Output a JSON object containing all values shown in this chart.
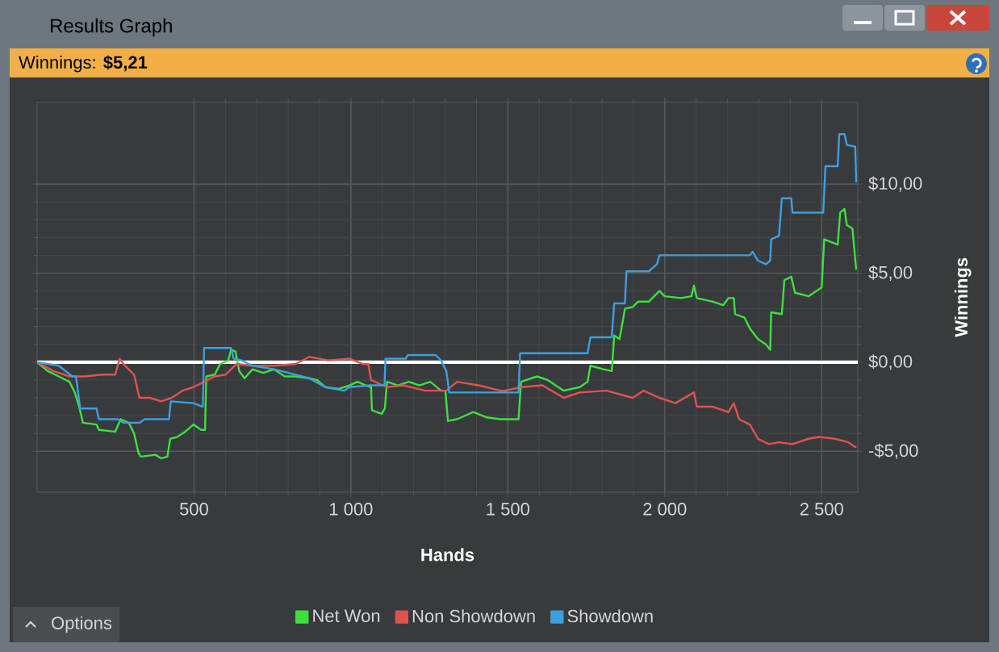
{
  "chart_data": {
    "type": "line",
    "title": "Results Graph",
    "subtitle": "Winnings: **$5,21**",
    "xlabel": "Hands",
    "ylabel": "Winnings",
    "annotations": [
      "Options"
    ],
    "xlim": [
      0,
      2615
    ],
    "ylim": [
      -7.3,
      14.6
    ],
    "xticks": [
      500,
      {
        "value": 1000,
        "label": "1 000"
      },
      {
        "value": 1500,
        "label": "1 500"
      },
      {
        "value": 2000,
        "label": "2 000"
      },
      {
        "value": 2500,
        "label": "2 500"
      }
    ],
    "yticks": [
      {
        "value": -5,
        "label": "-$5,00"
      },
      {
        "value": 0,
        "label": "$0,00"
      },
      {
        "value": 5,
        "label": "$5,00"
      },
      {
        "value": 10,
        "label": "$10,00"
      }
    ],
    "grid": true,
    "legend": "bottom",
    "ref_lines": [
      {
        "axis": "y",
        "value": 0,
        "color": "#ffffff"
      }
    ],
    "series": [
      {
        "name": "Net Won",
        "color": "#3ee03e",
        "x": [
          0,
          34,
          69,
          103,
          120,
          134,
          146,
          189,
          197,
          249,
          266,
          292,
          309,
          323,
          330,
          377,
          395,
          415,
          424,
          446,
          472,
          498,
          523,
          535,
          539,
          566,
          583,
          609,
          618,
          632,
          644,
          661,
          686,
          721,
          755,
          789,
          824,
          867,
          892,
          918,
          961,
          995,
          1021,
          1047,
          1064,
          1067,
          1098,
          1108,
          1115,
          1150,
          1184,
          1218,
          1253,
          1287,
          1301,
          1309,
          1338,
          1390,
          1433,
          1476,
          1491,
          1534,
          1542,
          1593,
          1627,
          1678,
          1729,
          1754,
          1763,
          1805,
          1831,
          1839,
          1856,
          1873,
          1898,
          1915,
          1949,
          1983,
          2000,
          2051,
          2085,
          2093,
          2102,
          2153,
          2186,
          2203,
          2220,
          2224,
          2254,
          2271,
          2297,
          2322,
          2336,
          2339,
          2373,
          2381,
          2403,
          2415,
          2458,
          2500,
          2508,
          2551,
          2559,
          2573,
          2580,
          2598,
          2610
        ],
        "values": [
          0,
          -0.5,
          -0.8,
          -1.1,
          -1.7,
          -2.5,
          -3.4,
          -3.5,
          -3.8,
          -3.9,
          -3.2,
          -3.4,
          -4.0,
          -5.1,
          -5.3,
          -5.2,
          -5.4,
          -5.3,
          -4.3,
          -4.2,
          -3.9,
          -3.5,
          -3.8,
          -3.8,
          -0.8,
          -0.7,
          -0.1,
          0.1,
          0.7,
          0.6,
          -0.5,
          -0.9,
          -0.4,
          -0.6,
          -0.4,
          -0.8,
          -0.8,
          -0.9,
          -1.0,
          -1.4,
          -1.5,
          -1.3,
          -1.1,
          -1.3,
          -1.4,
          -2.7,
          -2.9,
          -2.6,
          -1.1,
          -1.3,
          -1.1,
          -1.3,
          -1.1,
          -1.6,
          -1.6,
          -3.3,
          -3.2,
          -2.8,
          -3.1,
          -3.2,
          -3.2,
          -3.2,
          -1.1,
          -0.8,
          -1.0,
          -1.6,
          -1.4,
          -1.1,
          -0.2,
          -0.4,
          -0.5,
          1.5,
          1.3,
          3.0,
          3.1,
          3.4,
          3.4,
          4.0,
          3.7,
          3.6,
          3.7,
          4.3,
          3.6,
          3.4,
          3.2,
          3.6,
          3.6,
          2.7,
          2.5,
          1.9,
          1.3,
          1.0,
          0.7,
          2.8,
          2.7,
          4.6,
          4.8,
          3.9,
          3.7,
          4.2,
          6.9,
          6.6,
          8.4,
          8.6,
          7.7,
          7.5,
          5.2
        ]
      },
      {
        "name": "Non Showdown",
        "color": "#e0524f",
        "x": [
          0,
          52,
          103,
          154,
          206,
          249,
          263,
          275,
          309,
          326,
          360,
          395,
          429,
          463,
          498,
          532,
          566,
          600,
          618,
          635,
          686,
          755,
          824,
          867,
          927,
          995,
          1038,
          1055,
          1064,
          1115,
          1167,
          1236,
          1304,
          1338,
          1407,
          1476,
          1491,
          1542,
          1610,
          1678,
          1729,
          1814,
          1898,
          1932,
          1983,
          2034,
          2093,
          2102,
          2153,
          2203,
          2220,
          2237,
          2271,
          2297,
          2331,
          2364,
          2407,
          2458,
          2492,
          2542,
          2585,
          2610
        ],
        "values": [
          0,
          -0.5,
          -0.8,
          -0.8,
          -0.7,
          -0.7,
          0.2,
          -0.1,
          -0.7,
          -2.0,
          -2.0,
          -2.2,
          -2.0,
          -1.6,
          -1.4,
          -1.1,
          -0.8,
          -0.7,
          -0.4,
          -0.1,
          -0.2,
          -0.2,
          -0.1,
          0.3,
          0.1,
          0.2,
          -0.1,
          -0.1,
          -1.0,
          -1.4,
          -1.3,
          -1.6,
          -1.6,
          -1.1,
          -1.3,
          -1.6,
          -1.6,
          -1.4,
          -1.3,
          -2.0,
          -1.7,
          -1.6,
          -2.0,
          -1.6,
          -2.0,
          -2.3,
          -1.7,
          -2.5,
          -2.5,
          -2.8,
          -2.3,
          -3.2,
          -3.5,
          -4.3,
          -4.6,
          -4.5,
          -4.6,
          -4.3,
          -4.2,
          -4.3,
          -4.5,
          -4.8
        ]
      },
      {
        "name": "Showdown",
        "color": "#3d9fe0",
        "x": [
          0,
          69,
          112,
          124,
          137,
          189,
          197,
          257,
          275,
          326,
          343,
          420,
          426,
          498,
          528,
          532,
          618,
          626,
          652,
          686,
          755,
          824,
          867,
          918,
          978,
          995,
          1064,
          1107,
          1110,
          1175,
          1181,
          1270,
          1287,
          1304,
          1313,
          1476,
          1534,
          1539,
          1754,
          1763,
          1831,
          1839,
          1873,
          1878,
          1949,
          1975,
          1983,
          2271,
          2280,
          2297,
          2322,
          2336,
          2339,
          2364,
          2373,
          2403,
          2407,
          2505,
          2512,
          2551,
          2556,
          2573,
          2580,
          2607,
          2610
        ],
        "values": [
          0,
          -0.2,
          -0.8,
          -0.8,
          -2.6,
          -2.6,
          -3.2,
          -3.2,
          -3.4,
          -3.4,
          -3.2,
          -3.2,
          -2.2,
          -2.3,
          -2.5,
          0.8,
          0.8,
          0.2,
          0.1,
          -0.2,
          -0.4,
          -0.7,
          -0.9,
          -1.4,
          -1.6,
          -1.4,
          -1.3,
          -1.3,
          0.2,
          0.2,
          0.4,
          0.4,
          0.1,
          -0.5,
          -1.7,
          -1.7,
          -1.7,
          0.5,
          0.5,
          1.4,
          1.4,
          3.3,
          3.3,
          5.1,
          5.1,
          5.5,
          6.0,
          6.0,
          6.2,
          5.7,
          5.5,
          5.7,
          6.9,
          7.1,
          9.2,
          9.2,
          8.4,
          8.4,
          11.0,
          11.0,
          12.8,
          12.8,
          12.2,
          12.1,
          10.1
        ]
      }
    ]
  }
}
